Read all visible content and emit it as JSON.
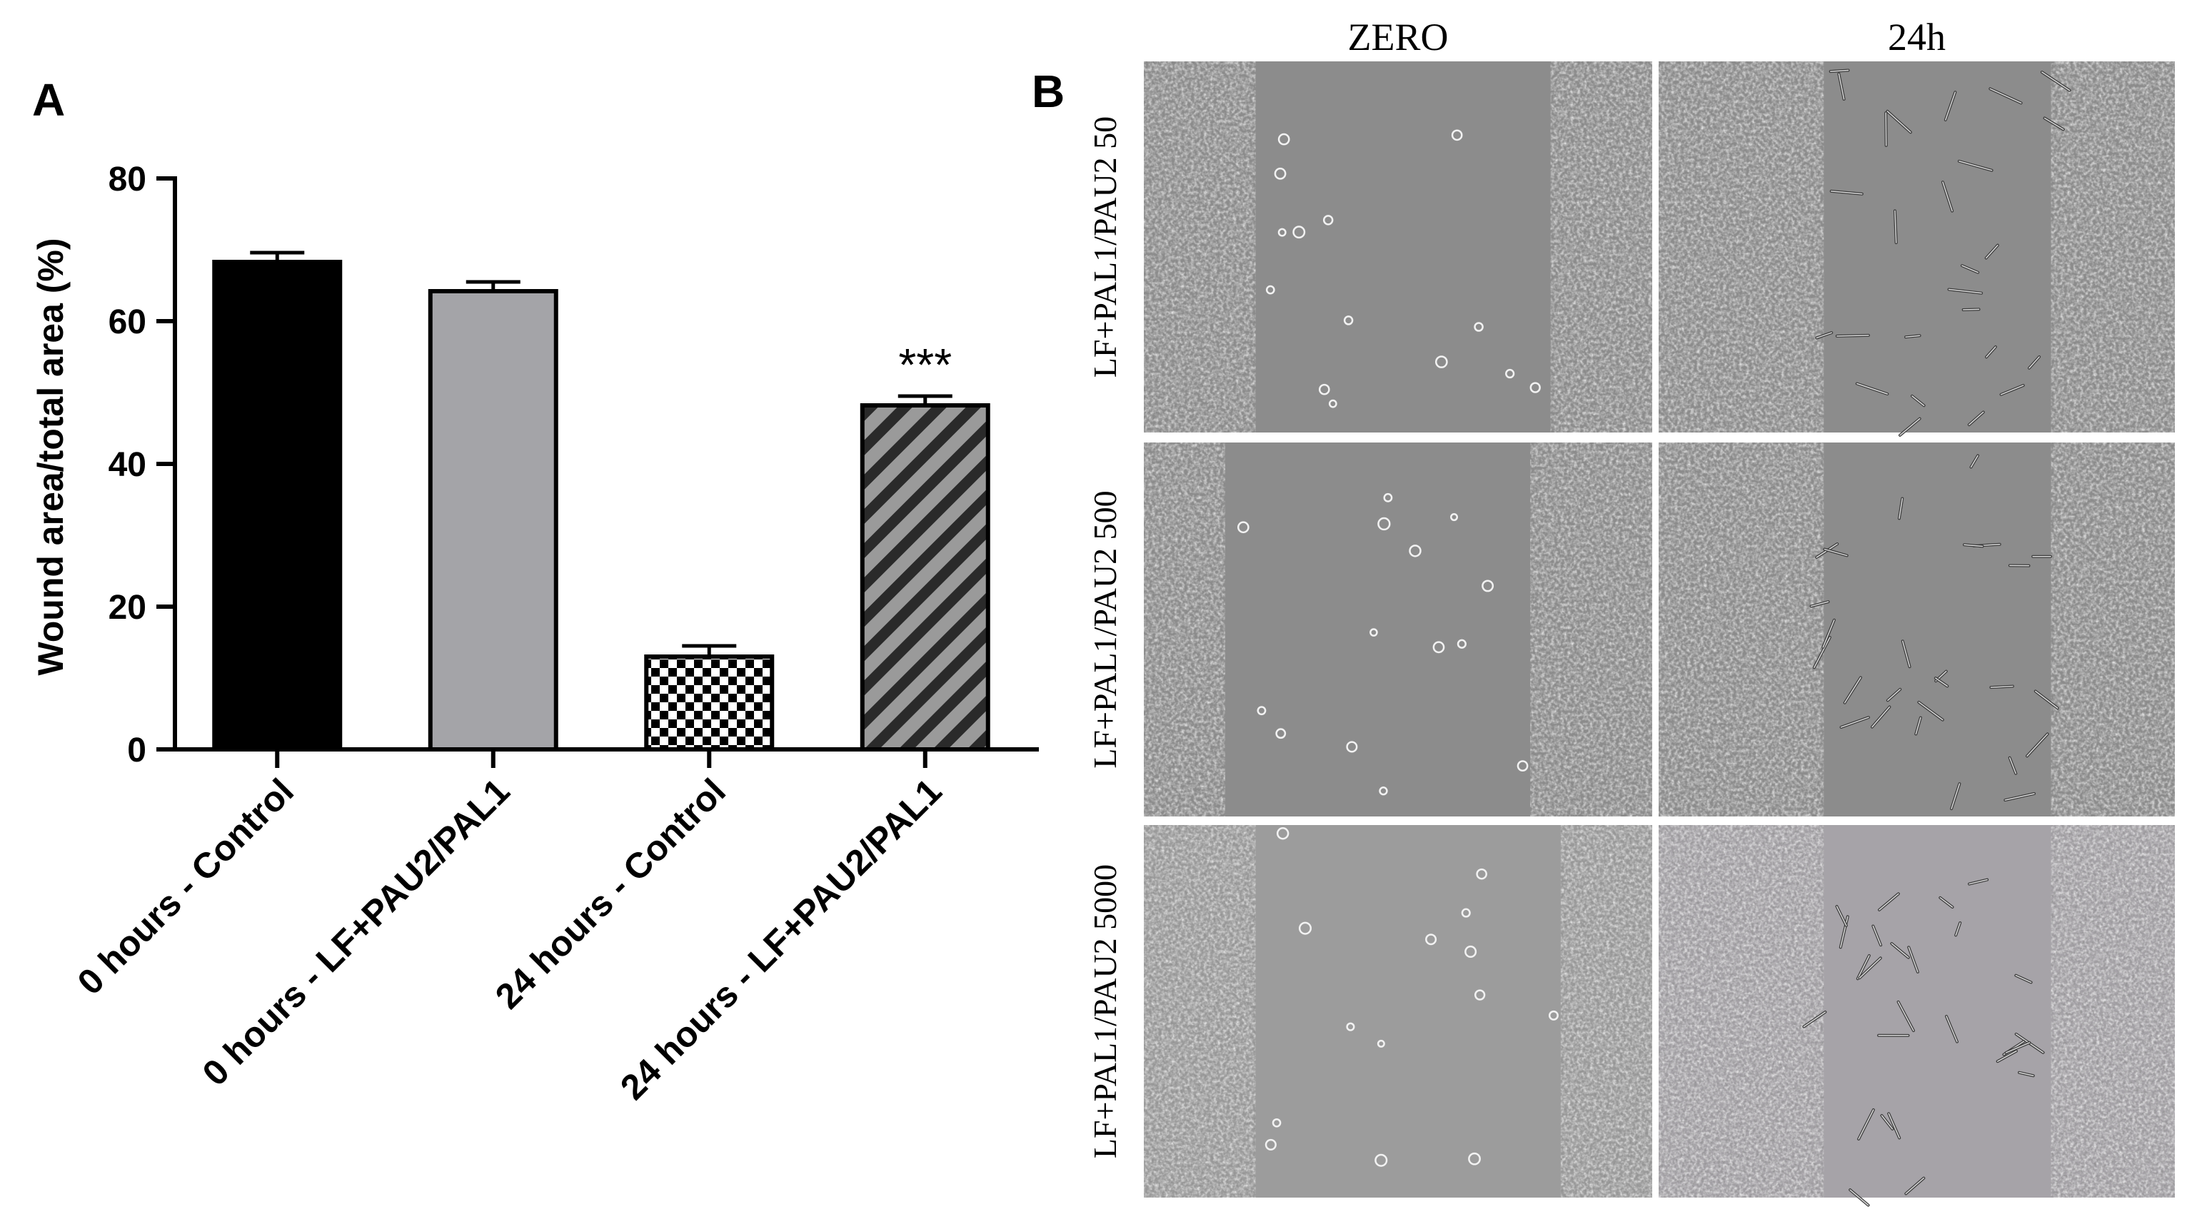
{
  "panel_a_label": "A",
  "panel_b_label": "B",
  "chart_data": {
    "type": "bar",
    "title": "",
    "xlabel": "",
    "ylabel": "Wound area/total area (%)",
    "ylim": [
      0,
      80
    ],
    "yticks": [
      0,
      20,
      40,
      60,
      80
    ],
    "categories": [
      "0 hours - Control",
      "0 hours - LF+PAU2/PAL1",
      "24 hours - Control",
      "24 hours - LF+PAU2/PAL1"
    ],
    "values": [
      68.3,
      64.2,
      13.0,
      48.2
    ],
    "errors": [
      1.3,
      1.3,
      1.5,
      1.3
    ],
    "fills": [
      "solid-black",
      "solid-gray",
      "checkerboard",
      "diagonal-stripes"
    ],
    "colors": {
      "black": "#000000",
      "gray": "#a4a4a8",
      "stripe_gray": "#9a9a9a"
    },
    "annotations": [
      {
        "category_index": 3,
        "text": "***"
      }
    ],
    "grid": false
  },
  "micrographs": {
    "columns": [
      "ZERO",
      "24h"
    ],
    "rows": [
      "LF+PAL1/PAU2  50",
      "LF+PAL1/PAU2  500",
      "LF+PAL1/PAU2  5000"
    ],
    "background_color": "#8c8c8c"
  }
}
